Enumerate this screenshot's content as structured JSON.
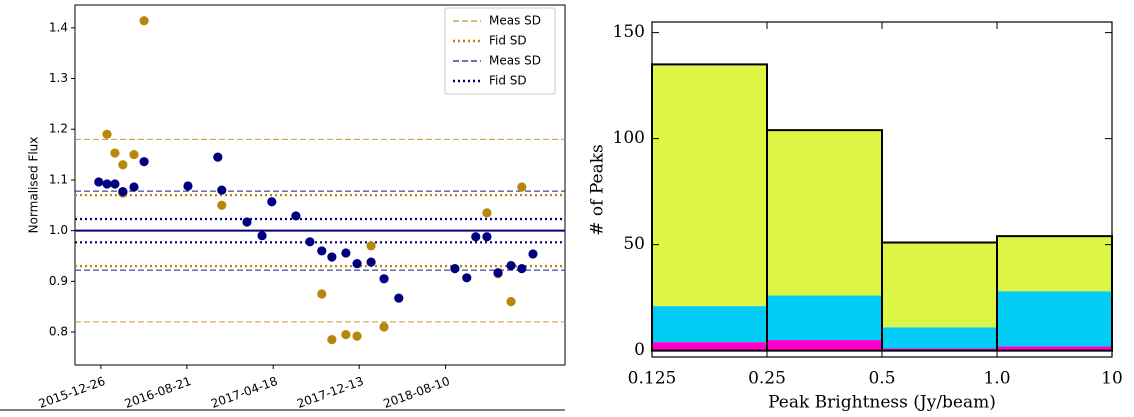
{
  "chart_data": [
    {
      "type": "scatter",
      "y_label": "Normalised Flux",
      "xlim": [
        "2015-10-15",
        "2019-07-08"
      ],
      "xticks": [
        "2015-12-26",
        "2016-08-21",
        "2017-04-18",
        "2017-12-13",
        "2018-08-10"
      ],
      "ylim": [
        0.735,
        1.445
      ],
      "yticks": [
        0.8,
        0.9,
        {
          "value": 1,
          "label": "1.0"
        },
        1.1,
        1.2,
        1.3,
        1.4
      ],
      "reference_line": 1,
      "reference_color": "#00007f",
      "legend": "upper right",
      "bands": [
        {
          "name": "Meas SD",
          "color": "#c8962e",
          "style": "dashed",
          "values": [
            1.18,
            0.82
          ]
        },
        {
          "name": "Fid SD",
          "color": "#b8860b",
          "style": "dotted",
          "values": [
            1.07,
            0.93
          ]
        },
        {
          "name": "Meas SD",
          "color": "#1a1a8c",
          "style": "dashed",
          "values": [
            1.078,
            0.922
          ]
        },
        {
          "name": "Fid SD",
          "color": "#00007f",
          "style": "dotted",
          "values": [
            1.023,
            0.977
          ]
        }
      ],
      "series": [
        {
          "color": "#b8860b",
          "x": [
            "2016-01-12",
            "2016-02-03",
            "2016-02-25",
            "2016-02-25",
            "2016-03-27",
            "2016-04-24",
            "2016-11-26",
            "2017-08-31",
            "2017-09-28",
            "2017-11-06",
            "2017-12-07",
            "2018-01-15",
            "2018-02-20",
            "2018-12-03",
            "2019-01-03",
            "2019-02-08",
            "2019-03-10"
          ],
          "values": [
            1.19,
            1.153,
            1.074,
            1.13,
            1.15,
            1.414,
            1.05,
            0.875,
            0.785,
            0.795,
            0.792,
            0.97,
            0.81,
            1.035,
            0.915,
            0.86,
            1.086
          ]
        },
        {
          "color": "#00007f",
          "x": [
            "2015-12-20",
            "2016-01-12",
            "2016-02-03",
            "2016-02-25",
            "2016-03-27",
            "2016-04-24",
            "2016-08-24",
            "2016-11-15",
            "2016-11-26",
            "2017-02-04",
            "2017-03-18",
            "2017-04-14",
            "2017-06-20",
            "2017-07-29",
            "2017-08-31",
            "2017-09-28",
            "2017-11-06",
            "2017-12-07",
            "2018-01-15",
            "2018-02-20",
            "2018-04-02",
            "2018-09-05",
            "2018-10-08",
            "2018-11-02",
            "2018-12-03",
            "2019-01-03",
            "2019-02-08",
            "2019-03-10",
            "2019-04-10"
          ],
          "values": [
            1.096,
            1.092,
            1.092,
            1.077,
            1.086,
            1.136,
            1.088,
            1.145,
            1.08,
            1.017,
            0.99,
            1.057,
            1.029,
            0.978,
            0.96,
            0.948,
            0.956,
            0.935,
            0.938,
            0.905,
            0.867,
            0.925,
            0.907,
            0.988,
            0.988,
            0.917,
            0.931,
            0.925,
            0.954
          ]
        }
      ]
    },
    {
      "type": "histogram",
      "x_label": "Peak Brightness (Jy/beam)",
      "y_label": "# of Peaks",
      "x_spacing": "even",
      "bins": [
        0.125,
        0.25,
        0.5,
        1,
        10
      ],
      "xticks": [
        0.125,
        0.25,
        0.5,
        {
          "value": 1,
          "label": "1.0"
        },
        10
      ],
      "ylim": [
        -3,
        155
      ],
      "yticks": [
        0,
        50,
        100,
        150
      ],
      "stacked": true,
      "series": [
        {
          "color": "#ff00cc",
          "values": [
            4,
            5,
            1,
            2
          ]
        },
        {
          "color": "#00ccf5",
          "values": [
            17,
            21,
            10,
            26
          ]
        },
        {
          "color": "#ddf545",
          "values": [
            114,
            78,
            40,
            26
          ]
        }
      ]
    }
  ]
}
